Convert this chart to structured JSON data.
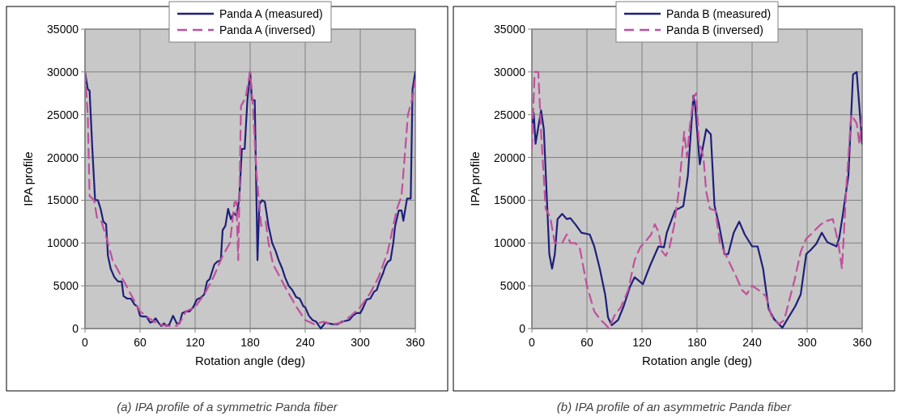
{
  "chart_data": [
    {
      "type": "line",
      "xlabel": "Rotation angle (deg)",
      "ylabel": "IPA profile",
      "xlim": [
        0,
        360
      ],
      "xticks": [
        0,
        60,
        120,
        180,
        240,
        300,
        360
      ],
      "ylim": [
        0,
        35000
      ],
      "yticks": [
        0,
        5000,
        10000,
        15000,
        20000,
        25000,
        30000,
        35000
      ],
      "grid": true,
      "legend": "top",
      "annotations": [
        "(a) IPA profile of a symmetric Panda fiber"
      ],
      "series": [
        {
          "name": "Panda A (measured)",
          "color": "#1f1f7a",
          "line_style": "solid",
          "x": [
            0,
            3,
            5,
            8,
            11,
            14,
            17,
            20,
            23,
            25,
            28,
            32,
            36,
            40,
            42,
            46,
            50,
            54,
            57,
            60,
            63,
            67,
            71,
            74,
            77,
            80,
            83,
            86,
            89,
            92,
            96,
            100,
            103,
            106,
            110,
            114,
            118,
            122,
            126,
            130,
            133,
            136,
            141,
            144,
            148,
            150,
            153,
            156,
            159,
            162,
            165,
            168,
            171,
            174,
            177,
            180,
            182,
            185,
            188,
            190,
            193,
            196,
            200,
            204,
            208,
            211,
            215,
            218,
            222,
            226,
            230,
            234,
            238,
            240,
            244,
            248,
            252,
            257,
            262,
            266,
            270,
            275,
            280,
            284,
            288,
            292,
            296,
            300,
            303,
            307,
            311,
            315,
            318,
            321,
            325,
            327,
            330,
            333,
            336,
            338,
            342,
            345,
            347,
            351,
            355,
            357,
            360
          ],
          "values": [
            30000,
            28000,
            27800,
            21000,
            15000,
            15000,
            14000,
            12500,
            12200,
            8500,
            7000,
            6000,
            5500,
            5500,
            3800,
            3500,
            3500,
            2800,
            2600,
            1500,
            1400,
            1400,
            700,
            800,
            1200,
            700,
            300,
            600,
            300,
            500,
            1500,
            600,
            600,
            1800,
            2000,
            2000,
            2500,
            3400,
            3600,
            4000,
            5500,
            5800,
            7500,
            7800,
            8000,
            11500,
            12000,
            14000,
            12800,
            13500,
            13200,
            15000,
            21000,
            21000,
            26700,
            30000,
            26700,
            26700,
            8000,
            14500,
            15000,
            14800,
            12000,
            10000,
            9000,
            8000,
            7000,
            6000,
            5000,
            4500,
            3700,
            3500,
            2600,
            2500,
            1500,
            1000,
            800,
            0,
            700,
            600,
            500,
            500,
            800,
            900,
            1000,
            1500,
            1800,
            1800,
            2400,
            3400,
            3500,
            4300,
            4500,
            5500,
            6500,
            7200,
            7800,
            8000,
            10000,
            12000,
            13800,
            13800,
            12600,
            15200,
            15200,
            28000,
            30000
          ]
        },
        {
          "name": "Panda A (inversed)",
          "color": "#c0509c",
          "line_style": "dashed",
          "x": [
            0,
            3,
            5,
            10,
            13,
            18,
            25,
            30,
            40,
            50,
            60,
            70,
            80,
            90,
            100,
            105,
            110,
            120,
            130,
            140,
            150,
            158,
            163,
            165,
            167,
            170,
            175,
            180,
            183,
            187,
            192,
            197,
            200,
            205,
            210,
            220,
            230,
            240,
            250,
            260,
            270,
            280,
            290,
            300,
            310,
            320,
            330,
            340,
            345,
            352,
            357,
            360
          ],
          "values": [
            30000,
            25000,
            15500,
            15000,
            13000,
            12500,
            10000,
            8000,
            6000,
            4000,
            2000,
            1200,
            500,
            300,
            300,
            1000,
            2000,
            2500,
            4000,
            6000,
            8500,
            10000,
            14800,
            14800,
            8000,
            26000,
            27000,
            30000,
            26000,
            18000,
            12000,
            12500,
            10000,
            7500,
            6500,
            4500,
            2600,
            1000,
            500,
            800,
            500,
            700,
            1500,
            2500,
            4000,
            6000,
            9000,
            14000,
            15500,
            25000,
            27000,
            29000
          ]
        }
      ]
    },
    {
      "type": "line",
      "xlabel": "Rotation angle (deg)",
      "ylabel": "IPA profile",
      "xlim": [
        0,
        360
      ],
      "xticks": [
        0,
        60,
        120,
        180,
        240,
        300,
        360
      ],
      "ylim": [
        0,
        35000
      ],
      "yticks": [
        0,
        5000,
        10000,
        15000,
        20000,
        25000,
        30000,
        35000
      ],
      "grid": true,
      "legend": "top",
      "annotations": [
        "(b) IPA profile of an asymmetric Panda fiber"
      ],
      "series": [
        {
          "name": "Panda B (measured)",
          "color": "#1f1f7a",
          "line_style": "solid",
          "x": [
            0,
            2,
            4,
            10,
            13,
            16,
            19,
            22,
            25,
            28,
            33,
            38,
            42,
            48,
            54,
            63,
            68,
            74,
            80,
            83,
            87,
            94,
            100,
            107,
            112,
            121,
            129,
            138,
            144,
            147,
            156,
            165,
            170,
            176,
            178,
            183,
            186,
            190,
            195,
            199,
            204,
            210,
            214,
            220,
            226,
            232,
            240,
            246,
            252,
            258,
            264,
            273,
            278,
            287,
            293,
            299,
            304,
            310,
            316,
            322,
            332,
            335,
            339,
            345,
            350,
            354,
            360
          ],
          "values": [
            23000,
            25200,
            21600,
            25500,
            23300,
            16000,
            8700,
            7000,
            8700,
            12800,
            13400,
            12800,
            12900,
            12100,
            11200,
            11000,
            9600,
            7000,
            3900,
            1300,
            400,
            1000,
            2600,
            4900,
            6000,
            5200,
            7400,
            9600,
            9500,
            11200,
            13800,
            14300,
            17900,
            27200,
            26000,
            19200,
            21000,
            23300,
            22700,
            14400,
            12100,
            8700,
            8700,
            11200,
            12500,
            11000,
            9600,
            9600,
            7000,
            2300,
            1100,
            100,
            1000,
            2600,
            4000,
            8700,
            9200,
            9900,
            11200,
            10100,
            9600,
            10600,
            13400,
            17900,
            29700,
            30000,
            21600
          ]
        },
        {
          "name": "Panda B (inversed)",
          "color": "#c0509c",
          "line_style": "dashed",
          "x": [
            0,
            3,
            7,
            10,
            15,
            20,
            25,
            33,
            38,
            42,
            47,
            52,
            60,
            68,
            75,
            80,
            84,
            90,
            97,
            105,
            112,
            118,
            124,
            130,
            134,
            138,
            142,
            146,
            150,
            155,
            160,
            166,
            169,
            172,
            176,
            179,
            182,
            187,
            190,
            194,
            200,
            205,
            214,
            223,
            229,
            234,
            240,
            247,
            255,
            261,
            269,
            275,
            281,
            287,
            293,
            299,
            304,
            313,
            319,
            328,
            334,
            338,
            343,
            348,
            354,
            357,
            360
          ],
          "values": [
            21000,
            30000,
            30000,
            23000,
            14000,
            13000,
            10000,
            10000,
            11000,
            10000,
            10000,
            9500,
            5000,
            2000,
            1000,
            500,
            0,
            1500,
            2500,
            4500,
            8000,
            9500,
            10200,
            11000,
            12200,
            11300,
            9000,
            8500,
            9500,
            12000,
            16000,
            23000,
            20000,
            23500,
            27000,
            27500,
            22000,
            20000,
            16000,
            14000,
            13800,
            10000,
            8000,
            6000,
            4500,
            4000,
            5000,
            4500,
            3800,
            1500,
            500,
            1000,
            3500,
            6000,
            9000,
            10500,
            11000,
            12000,
            12500,
            12800,
            10000,
            7000,
            17000,
            25000,
            24000,
            21500,
            25000
          ]
        }
      ]
    }
  ]
}
